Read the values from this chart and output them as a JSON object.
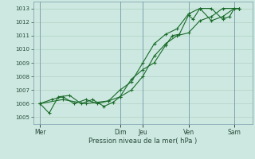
{
  "background_color": "#cce8e0",
  "grid_color": "#aaccbb",
  "line_color": "#1a6b2a",
  "marker_color": "#1a6b2a",
  "xlabel": "Pression niveau de la mer( hPa )",
  "ylim": [
    1004.5,
    1013.5
  ],
  "yticks": [
    1005,
    1006,
    1007,
    1008,
    1009,
    1010,
    1011,
    1012,
    1013
  ],
  "x_day_labels": [
    "Mer",
    "Dim",
    "Jeu",
    "Ven",
    "Sam"
  ],
  "x_day_positions": [
    0.0,
    3.5,
    4.5,
    6.5,
    8.5
  ],
  "xlim": [
    -0.3,
    9.3
  ],
  "series1": [
    [
      0.0,
      1006.0
    ],
    [
      0.4,
      1005.3
    ],
    [
      0.8,
      1006.5
    ],
    [
      1.3,
      1006.6
    ],
    [
      1.8,
      1006.0
    ],
    [
      2.3,
      1006.3
    ],
    [
      2.8,
      1005.8
    ],
    [
      3.2,
      1006.1
    ],
    [
      3.5,
      1006.5
    ],
    [
      4.0,
      1007.8
    ],
    [
      4.5,
      1008.5
    ],
    [
      5.0,
      1009.0
    ],
    [
      5.5,
      1010.3
    ],
    [
      5.8,
      1011.0
    ],
    [
      6.1,
      1011.1
    ],
    [
      6.5,
      1012.5
    ],
    [
      6.7,
      1012.2
    ],
    [
      7.0,
      1013.0
    ],
    [
      7.5,
      1013.0
    ],
    [
      8.0,
      1012.2
    ],
    [
      8.3,
      1012.4
    ],
    [
      8.5,
      1013.0
    ],
    [
      8.7,
      1013.0
    ]
  ],
  "series2": [
    [
      0.0,
      1006.0
    ],
    [
      0.5,
      1006.3
    ],
    [
      1.0,
      1006.5
    ],
    [
      1.5,
      1006.0
    ],
    [
      2.0,
      1006.3
    ],
    [
      2.5,
      1006.0
    ],
    [
      3.0,
      1006.2
    ],
    [
      3.5,
      1007.0
    ],
    [
      4.0,
      1007.6
    ],
    [
      4.5,
      1009.0
    ],
    [
      5.0,
      1010.4
    ],
    [
      5.5,
      1011.1
    ],
    [
      6.0,
      1011.5
    ],
    [
      6.5,
      1012.6
    ],
    [
      7.0,
      1013.0
    ],
    [
      7.5,
      1012.1
    ],
    [
      8.0,
      1012.4
    ],
    [
      8.5,
      1013.0
    ],
    [
      8.7,
      1013.0
    ]
  ],
  "series3": [
    [
      0.0,
      1006.0
    ],
    [
      1.0,
      1006.3
    ],
    [
      2.0,
      1006.0
    ],
    [
      3.0,
      1006.2
    ],
    [
      3.5,
      1006.5
    ],
    [
      4.0,
      1007.0
    ],
    [
      4.5,
      1008.0
    ],
    [
      5.0,
      1009.5
    ],
    [
      5.5,
      1010.4
    ],
    [
      6.0,
      1011.0
    ],
    [
      6.5,
      1011.2
    ],
    [
      7.0,
      1012.1
    ],
    [
      7.5,
      1012.4
    ],
    [
      8.0,
      1013.0
    ],
    [
      8.7,
      1013.0
    ]
  ]
}
